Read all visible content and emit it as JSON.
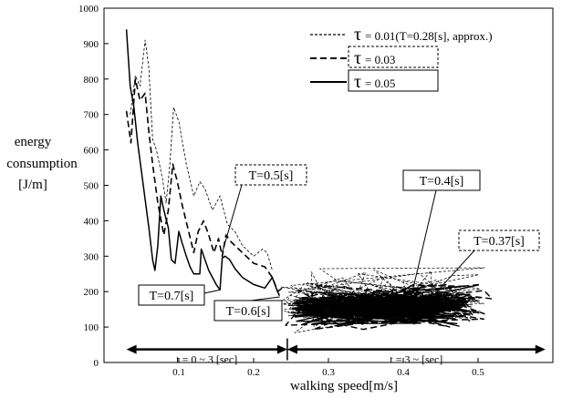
{
  "chart_data": {
    "type": "line",
    "xlabel": "walking speed[m/s]",
    "ylabel": [
      "energy",
      "consumption",
      "[J/m]"
    ],
    "xlim": [
      0,
      0.6
    ],
    "ylim": [
      0,
      1000
    ],
    "x_ticks": [
      "0.1",
      "0.2",
      "0.3",
      "0.4",
      "0.5"
    ],
    "y_ticks": [
      "100",
      "200",
      "300",
      "400",
      "500",
      "600",
      "700",
      "800",
      "900",
      "1000"
    ],
    "origin_label": "0",
    "grid": false,
    "legend": {
      "placement": "top-right",
      "symbol": "τ",
      "entries": [
        {
          "value": "= 0.01",
          "note": "(T=0.28[s], approx.)",
          "style": "dotted"
        },
        {
          "value": "= 0.03",
          "note": "",
          "style": "dashed"
        },
        {
          "value": "= 0.05",
          "note": "",
          "style": "solid"
        }
      ]
    },
    "series": [
      {
        "style": "dotted",
        "points": [
          [
            0.035,
            700
          ],
          [
            0.042,
            810
          ],
          [
            0.048,
            780
          ],
          [
            0.055,
            910
          ],
          [
            0.06,
            830
          ],
          [
            0.065,
            630
          ],
          [
            0.07,
            600
          ],
          [
            0.078,
            520
          ],
          [
            0.083,
            450
          ],
          [
            0.088,
            560
          ],
          [
            0.093,
            720
          ],
          [
            0.1,
            680
          ],
          [
            0.11,
            560
          ],
          [
            0.12,
            470
          ],
          [
            0.128,
            510
          ],
          [
            0.135,
            490
          ],
          [
            0.145,
            430
          ],
          [
            0.155,
            470
          ],
          [
            0.165,
            390
          ],
          [
            0.175,
            370
          ],
          [
            0.185,
            330
          ],
          [
            0.2,
            300
          ],
          [
            0.212,
            320
          ],
          [
            0.218,
            310
          ],
          [
            0.225,
            260
          ]
        ]
      },
      {
        "style": "dashed",
        "points": [
          [
            0.03,
            710
          ],
          [
            0.036,
            620
          ],
          [
            0.042,
            800
          ],
          [
            0.048,
            740
          ],
          [
            0.055,
            760
          ],
          [
            0.06,
            650
          ],
          [
            0.065,
            560
          ],
          [
            0.072,
            450
          ],
          [
            0.08,
            360
          ],
          [
            0.086,
            430
          ],
          [
            0.092,
            560
          ],
          [
            0.098,
            510
          ],
          [
            0.105,
            440
          ],
          [
            0.112,
            380
          ],
          [
            0.12,
            310
          ],
          [
            0.126,
            370
          ],
          [
            0.133,
            400
          ],
          [
            0.14,
            360
          ],
          [
            0.147,
            310
          ],
          [
            0.153,
            350
          ],
          [
            0.158,
            300
          ],
          [
            0.163,
            360
          ],
          [
            0.17,
            340
          ],
          [
            0.18,
            320
          ],
          [
            0.19,
            300
          ],
          [
            0.2,
            280
          ],
          [
            0.215,
            270
          ],
          [
            0.225,
            240
          ],
          [
            0.235,
            185
          ]
        ]
      },
      {
        "style": "solid",
        "points": [
          [
            0.03,
            940
          ],
          [
            0.035,
            780
          ],
          [
            0.04,
            720
          ],
          [
            0.045,
            620
          ],
          [
            0.05,
            540
          ],
          [
            0.055,
            460
          ],
          [
            0.06,
            380
          ],
          [
            0.065,
            290
          ],
          [
            0.068,
            260
          ],
          [
            0.072,
            330
          ],
          [
            0.076,
            470
          ],
          [
            0.08,
            430
          ],
          [
            0.086,
            380
          ],
          [
            0.09,
            290
          ],
          [
            0.095,
            280
          ],
          [
            0.1,
            370
          ],
          [
            0.104,
            340
          ],
          [
            0.11,
            300
          ],
          [
            0.115,
            270
          ],
          [
            0.12,
            250
          ],
          [
            0.128,
            250
          ],
          [
            0.13,
            320
          ],
          [
            0.135,
            290
          ],
          [
            0.14,
            260
          ],
          [
            0.145,
            240
          ],
          [
            0.15,
            220
          ],
          [
            0.155,
            205
          ],
          [
            0.158,
            295
          ],
          [
            0.162,
            300
          ],
          [
            0.168,
            290
          ],
          [
            0.175,
            265
          ],
          [
            0.185,
            240
          ],
          [
            0.2,
            220
          ],
          [
            0.215,
            210
          ],
          [
            0.225,
            240
          ],
          [
            0.232,
            200
          ],
          [
            0.238,
            210
          ]
        ]
      }
    ],
    "clusters": [
      {
        "style": "dotted",
        "x_range": [
          0.235,
          0.51
        ],
        "y_range": [
          80,
          275
        ],
        "count": 170,
        "seed": 11
      },
      {
        "style": "dashed",
        "x_range": [
          0.24,
          0.52
        ],
        "y_range": [
          90,
          235
        ],
        "count": 150,
        "seed": 23
      },
      {
        "style": "solid",
        "x_range": [
          0.25,
          0.49
        ],
        "y_range": [
          100,
          205
        ],
        "count": 190,
        "seed": 37
      }
    ],
    "annotations": [
      {
        "text": "T=0.5[s]",
        "box": "dashed",
        "target": [
          0.158,
          310
        ]
      },
      {
        "text": "T=0.7[s]",
        "box": "solid",
        "target": [
          0.155,
          205
        ]
      },
      {
        "text": "T=0.6[s]",
        "box": "solid",
        "target": [
          0.235,
          185
        ]
      },
      {
        "text": "T=0.4[s]",
        "box": "solid",
        "target": [
          0.41,
          180
        ]
      },
      {
        "text": "T=0.37[s]",
        "box": "dashed",
        "target": [
          0.43,
          165
        ]
      }
    ],
    "periods": [
      {
        "label": "t = 0 ~ 3 [sec]",
        "x_range": [
          0.03,
          0.245
        ]
      },
      {
        "label": "t = 3 ~ [sec]",
        "x_range": [
          0.245,
          0.59
        ]
      }
    ]
  }
}
